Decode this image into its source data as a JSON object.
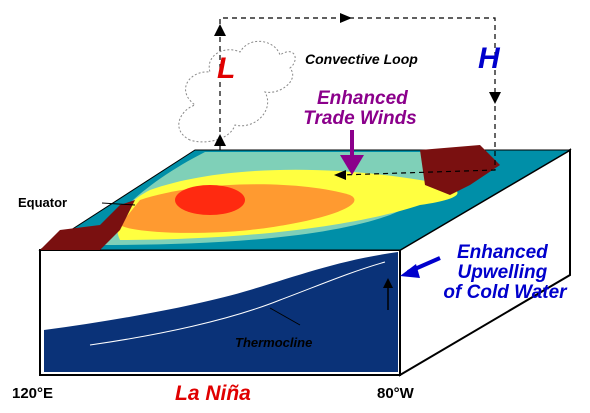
{
  "labels": {
    "low": "L",
    "high": "H",
    "loop": "Convective Loop",
    "trade_winds": [
      "Enhanced",
      "Trade Winds"
    ],
    "equator": "Equator",
    "upwelling": [
      "Enhanced",
      "Upwelling",
      "of Cold Water"
    ],
    "thermocline": "Thermocline",
    "west": "120°E",
    "title": "La Niña",
    "east": "80°W"
  }
}
